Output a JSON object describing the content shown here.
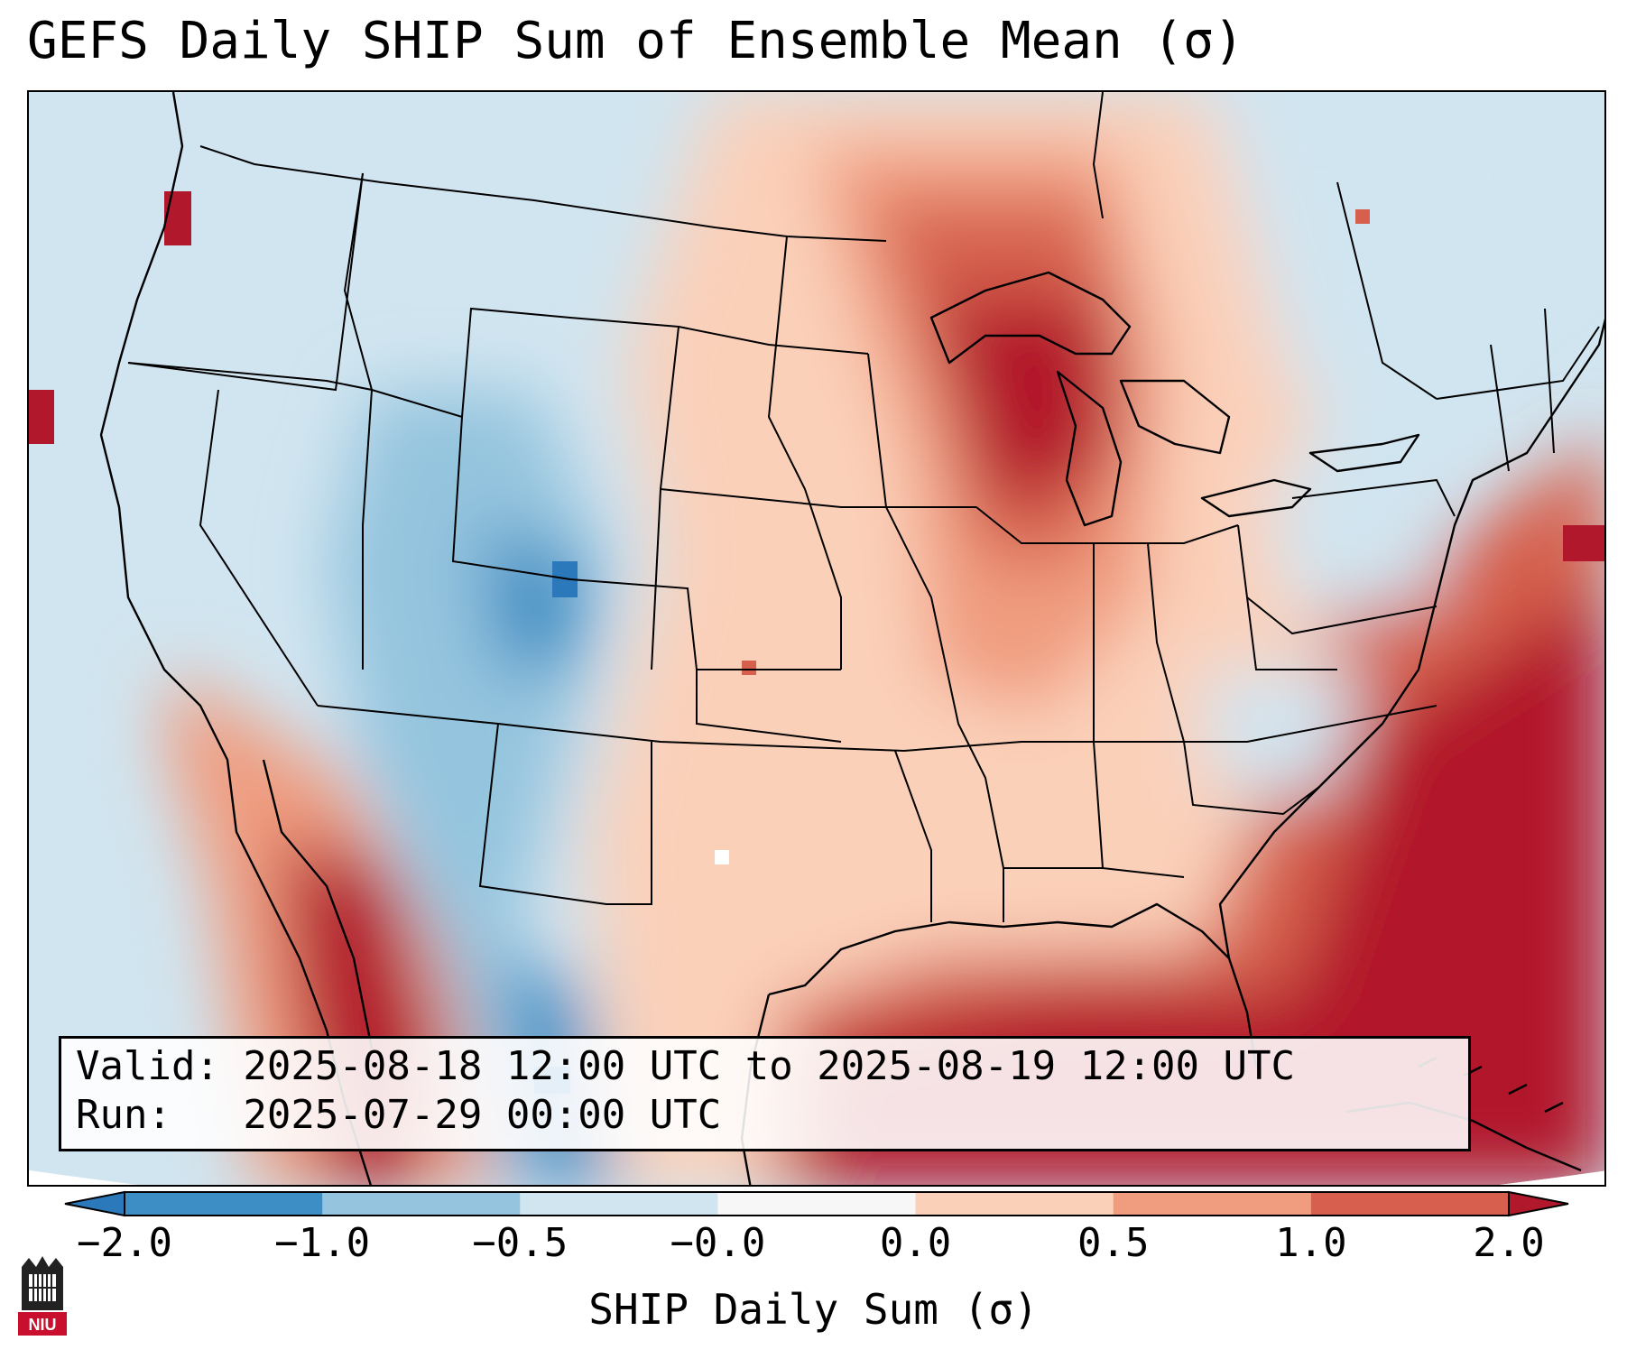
{
  "title": "GEFS Daily SHIP Sum of Ensemble Mean (σ)",
  "info": {
    "valid": "Valid: 2025-08-18 12:00 UTC to 2025-08-19 12:00 UTC",
    "run": "Run:   2025-07-29 00:00 UTC"
  },
  "colorbar": {
    "label": "SHIP Daily Sum (σ)",
    "ticks": [
      "−2.0",
      "−1.0",
      "−0.5",
      "−0.0",
      "0.0",
      "0.5",
      "1.0",
      "2.0"
    ],
    "colors": [
      "#2b79bb",
      "#3d8ec4",
      "#94c4de",
      "#d1e5f0",
      "#f7f7f7",
      "#fbd0b9",
      "#f09c7f",
      "#d6604d",
      "#b2182b"
    ],
    "extend": "both"
  },
  "logo": {
    "text": "NIU",
    "icon": "niu-logo-icon"
  }
}
